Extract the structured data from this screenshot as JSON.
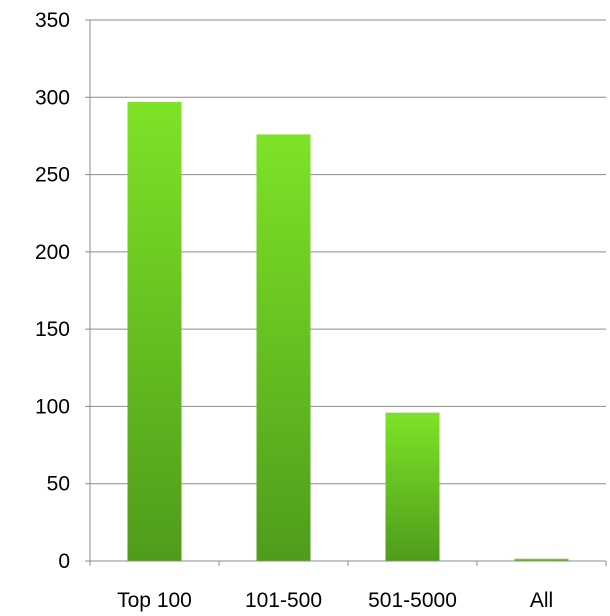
{
  "chart_data": {
    "type": "bar",
    "categories": [
      "Top 100",
      "101-500",
      "501-5000",
      "All"
    ],
    "values": [
      297,
      276,
      96,
      1.5
    ],
    "ylim": [
      0,
      350
    ],
    "yticks": [
      0,
      50,
      100,
      150,
      200,
      250,
      300,
      350
    ],
    "grid": true,
    "title": "",
    "xlabel": "",
    "ylabel": "",
    "bar_color_top": "#7ee327",
    "bar_color_bottom": "#4f9c1b",
    "gridline_color": "#8c8c8c"
  }
}
